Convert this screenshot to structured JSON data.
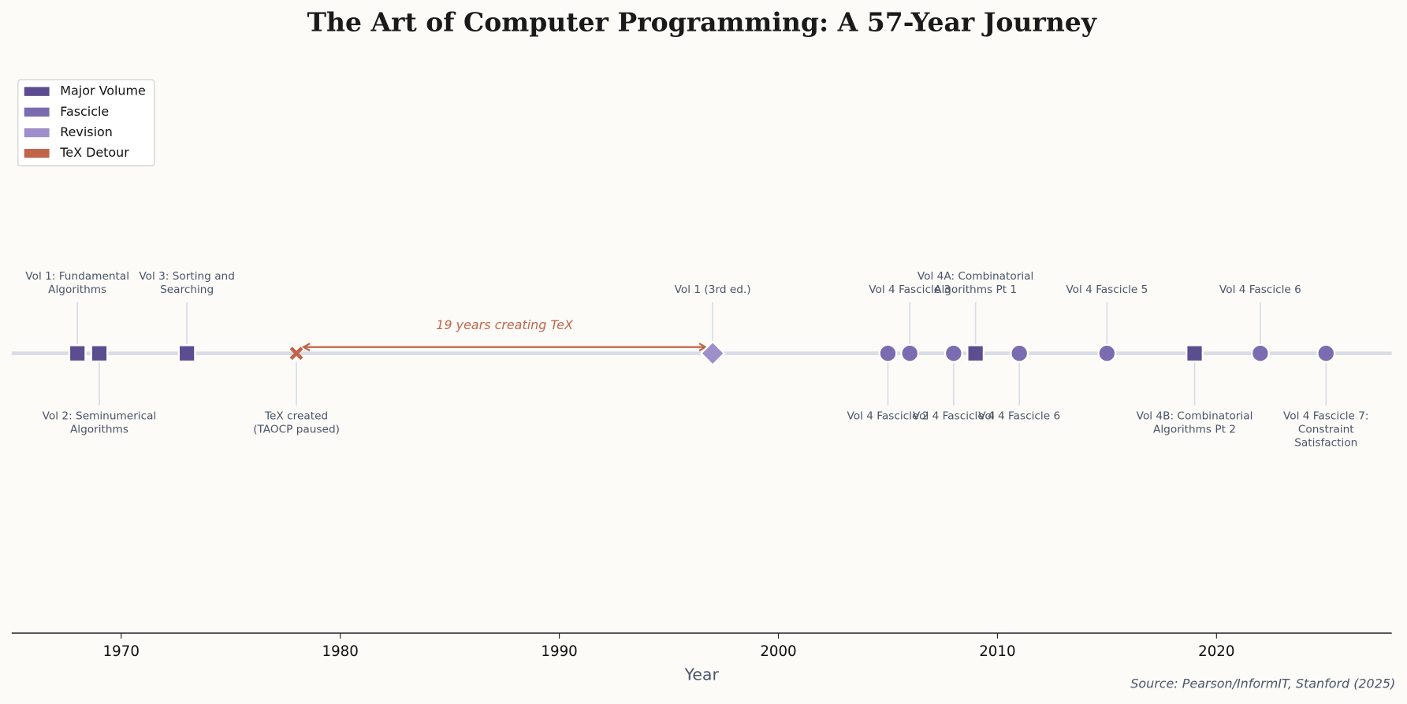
{
  "chart_data": {
    "type": "timeline",
    "title": "The Art of Computer Programming: A 57-Year Journey",
    "xlabel": "Year",
    "source": "Source: Pearson/InformIT, Stanford (2025)",
    "xlim": [
      1965,
      2028
    ],
    "xticks": [
      1970,
      1980,
      1990,
      2000,
      2010,
      2020
    ],
    "series": [
      {
        "name": "Major Volume",
        "color": "#5c4d91",
        "marker": "square",
        "x": [
          1968,
          1969,
          1973,
          2009,
          2019
        ],
        "labels": [
          "Vol 1: Fundamental\nAlgorithms",
          "Vol 2: Seminumerical\nAlgorithms",
          "Vol 3: Sorting and\nSearching",
          "Vol 4A: Combinatorial\nAlgorithms Pt 1",
          "Vol 4B: Combinatorial\nAlgorithms Pt 2"
        ]
      },
      {
        "name": "Fascicle",
        "color": "#7b6bb0",
        "marker": "circle",
        "x": [
          2005,
          2006,
          2008,
          2011,
          2015,
          2022,
          2025
        ],
        "labels": [
          "Vol 4 Fascicle 2",
          "Vol 4 Fascicle 3",
          "Vol 4 Fascicle 4",
          "Vol 4 Fascicle 6",
          "Vol 4 Fascicle 5",
          "Vol 4 Fascicle 6",
          "Vol 4 Fascicle 7:\nConstraint\nSatisfaction"
        ]
      },
      {
        "name": "Revision",
        "color": "#9e8fca",
        "marker": "diamond",
        "x": [
          1997
        ],
        "labels": [
          "Vol 1 (3rd ed.)"
        ]
      },
      {
        "name": "TeX Detour",
        "color": "#c0654a",
        "marker": "cross",
        "x": [
          1978
        ],
        "labels": [
          "TeX created\n(TAOCP paused)"
        ]
      }
    ],
    "annotation": {
      "text": "19 years creating TeX",
      "from": 1978,
      "to": 1997
    }
  }
}
